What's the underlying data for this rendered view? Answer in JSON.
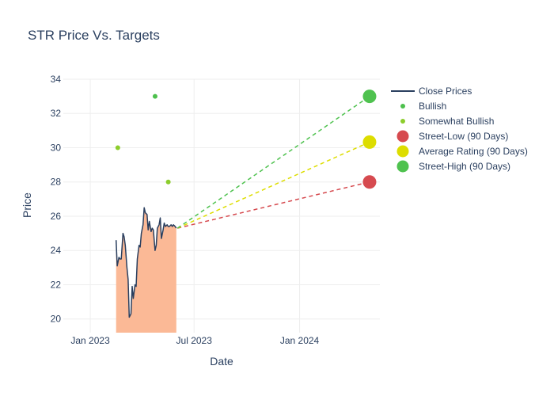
{
  "chart_data": {
    "type": "line",
    "title": "STR Price Vs. Targets",
    "xlabel": "Date",
    "ylabel": "Price",
    "x_range": [
      "2022-11-15",
      "2024-05-20"
    ],
    "ylim": [
      19.2,
      34.0
    ],
    "x_ticks": [
      {
        "date": "2023-01-01",
        "label": "Jan 2023"
      },
      {
        "date": "2023-07-01",
        "label": "Jul 2023"
      },
      {
        "date": "2024-01-01",
        "label": "Jan 2024"
      }
    ],
    "y_ticks": [
      20,
      22,
      24,
      26,
      28,
      30,
      32,
      34
    ],
    "grid": true,
    "legend_position": "top-right",
    "colors": {
      "close_line": "#2a3f5f",
      "close_fill": "#fbb996",
      "bullish": "#4dc04d",
      "somewhat_bullish": "#8ccd2c",
      "street_low": "#d64a4f",
      "average": "#dddd00",
      "street_high": "#4fc24f",
      "grid": "#eeeeee",
      "text": "#2a3f5f"
    },
    "legend": [
      {
        "key": "close",
        "label": "Close Prices"
      },
      {
        "key": "bullish",
        "label": "Bullish"
      },
      {
        "key": "somewhat_bullish",
        "label": "Somewhat Bullish"
      },
      {
        "key": "street_low",
        "label": "Street-Low (90 Days)"
      },
      {
        "key": "average",
        "label": "Average Rating (90 Days)"
      },
      {
        "key": "street_high",
        "label": "Street-High (90 Days)"
      }
    ],
    "series": [
      {
        "name": "Close Prices",
        "x": [
          "2023-02-15",
          "2023-02-17",
          "2023-02-20",
          "2023-02-22",
          "2023-02-24",
          "2023-02-27",
          "2023-03-01",
          "2023-03-03",
          "2023-03-06",
          "2023-03-08",
          "2023-03-10",
          "2023-03-13",
          "2023-03-15",
          "2023-03-17",
          "2023-03-20",
          "2023-03-22",
          "2023-03-24",
          "2023-03-27",
          "2023-03-29",
          "2023-03-31",
          "2023-04-03",
          "2023-04-05",
          "2023-04-07",
          "2023-04-10",
          "2023-04-12",
          "2023-04-14",
          "2023-04-17",
          "2023-04-19",
          "2023-04-21",
          "2023-04-24",
          "2023-04-26",
          "2023-04-28",
          "2023-05-01",
          "2023-05-03",
          "2023-05-05",
          "2023-05-08",
          "2023-05-10",
          "2023-05-12",
          "2023-05-15",
          "2023-05-17",
          "2023-05-19",
          "2023-05-22",
          "2023-05-24",
          "2023-05-26",
          "2023-05-29",
          "2023-05-31"
        ],
        "y": [
          24.6,
          23.1,
          23.6,
          23.5,
          23.5,
          25.0,
          24.8,
          24.3,
          23.0,
          22.3,
          20.1,
          20.3,
          21.9,
          21.2,
          22.0,
          21.9,
          23.5,
          24.3,
          24.2,
          25.0,
          25.5,
          26.5,
          26.2,
          26.1,
          25.2,
          25.7,
          25.1,
          25.3,
          25.2,
          24.0,
          24.3,
          25.3,
          25.5,
          25.9,
          24.7,
          25.2,
          25.6,
          25.4,
          25.5,
          25.4,
          25.4,
          25.5,
          25.4,
          25.5,
          25.4,
          25.3
        ]
      },
      {
        "name": "Bullish",
        "points": [
          {
            "x": "2023-04-24",
            "y": 33
          }
        ]
      },
      {
        "name": "Somewhat Bullish",
        "points": [
          {
            "x": "2023-02-18",
            "y": 30
          },
          {
            "x": "2023-05-17",
            "y": 28
          }
        ]
      },
      {
        "name": "Street-Low (90 Days)",
        "start": {
          "x": "2023-06-02",
          "y": 25.3
        },
        "end": {
          "x": "2024-05-02",
          "y": 28
        }
      },
      {
        "name": "Average Rating (90 Days)",
        "start": {
          "x": "2023-06-02",
          "y": 25.3
        },
        "end": {
          "x": "2024-05-02",
          "y": 30.33
        }
      },
      {
        "name": "Street-High (90 Days)",
        "start": {
          "x": "2023-06-02",
          "y": 25.3
        },
        "end": {
          "x": "2024-05-02",
          "y": 33
        }
      }
    ]
  }
}
